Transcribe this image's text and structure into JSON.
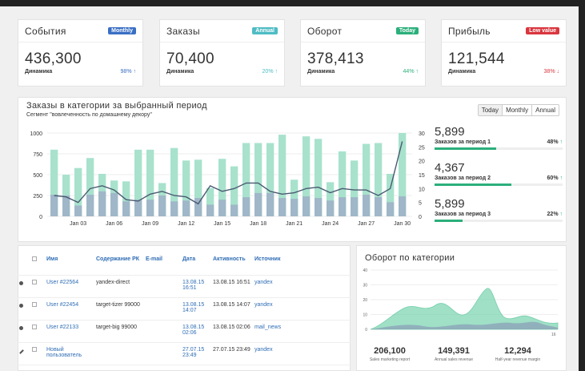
{
  "kpis": [
    {
      "title": "События",
      "badge": "Monthly",
      "badge_color": "#3a6fc4",
      "value": "436,300",
      "dyn": "Динамика",
      "pct": "98%",
      "arrow": "↑",
      "pct_color": "#3a6fc4"
    },
    {
      "title": "Заказы",
      "badge": "Annual",
      "badge_color": "#4fbcc4",
      "value": "70,400",
      "dyn": "Динамика",
      "pct": "20%",
      "arrow": "↑",
      "pct_color": "#4fbcc4"
    },
    {
      "title": "Оборот",
      "badge": "Today",
      "badge_color": "#2baf7b",
      "value": "378,413",
      "dyn": "Динамика",
      "pct": "44%",
      "arrow": "↑",
      "pct_color": "#2baf7b"
    },
    {
      "title": "Прибыль",
      "badge": "Low value",
      "badge_color": "#d9363e",
      "value": "121,544",
      "dyn": "Динамика",
      "pct": "38%",
      "arrow": "↓",
      "pct_color": "#d9363e"
    }
  ],
  "main": {
    "title": "Заказы в категории за выбранный период",
    "subtitle": "Сегмент \"вовлеченность по домашнему декору\"",
    "periods": [
      "Today",
      "Monthly",
      "Annual"
    ]
  },
  "stats": [
    {
      "value": "5,899",
      "label": "Заказов за период 1",
      "pct": "48%",
      "arrow": "↑",
      "fill": 0.48
    },
    {
      "value": "4,367",
      "label": "Заказов за период 2",
      "pct": "60%",
      "arrow": "↑",
      "fill": 0.6
    },
    {
      "value": "5,899",
      "label": "Заказов за период 3",
      "pct": "22%",
      "arrow": "↑",
      "fill": 0.22
    }
  ],
  "chart_data": {
    "type": "bar",
    "left_axis": [
      0,
      250,
      500,
      750,
      1000
    ],
    "right_axis": [
      0,
      5,
      10,
      15,
      20,
      25,
      30
    ],
    "x_ticks": [
      "Jan 03",
      "Jan 06",
      "Jan 09",
      "Jan 12",
      "Jan 15",
      "Jan 18",
      "Jan 21",
      "Jan 24",
      "Jan 27",
      "Jan 30"
    ],
    "bars_light": [
      800,
      500,
      580,
      700,
      510,
      430,
      420,
      800,
      800,
      400,
      820,
      670,
      680,
      340,
      690,
      600,
      880,
      880,
      880,
      980,
      440,
      960,
      930,
      410,
      780,
      670,
      870,
      880,
      510,
      1000
    ],
    "bars_dark": [
      260,
      250,
      130,
      260,
      300,
      280,
      180,
      200,
      200,
      250,
      180,
      190,
      220,
      140,
      200,
      140,
      230,
      280,
      280,
      220,
      210,
      240,
      220,
      190,
      230,
      230,
      260,
      230,
      170,
      240
    ],
    "line_right": [
      7.5,
      7,
      5,
      10,
      11,
      9.5,
      6,
      5.5,
      8,
      9,
      7.5,
      7,
      4.5,
      11,
      9,
      10,
      12,
      12,
      9,
      8,
      8.5,
      10,
      10.5,
      8.5,
      10,
      9.5,
      9.5,
      7.5,
      10,
      27
    ]
  },
  "table": {
    "headers": [
      "Имя",
      "Содержание РК",
      "E-mail",
      "Дата",
      "Активность",
      "Источник"
    ],
    "rows": [
      {
        "icon": "gear",
        "name": "User #22564",
        "content": "yandex-direct",
        "email": "",
        "date": "13.08.15 16:51",
        "act": "13.08.15 16:51",
        "src": "yandex"
      },
      {
        "icon": "gear",
        "name": "User #22454",
        "content": "target-tizer 99000",
        "email": "",
        "date": "13.08.15 14:07",
        "act": "13.08.15 14:07",
        "src": "yandex"
      },
      {
        "icon": "gear",
        "name": "User #22133",
        "content": "target-big 99000",
        "email": "",
        "date": "13.08.15 02:06",
        "act": "13.08.15 02:06",
        "src": "mail_news"
      },
      {
        "icon": "pen",
        "name": "Новый пользователь",
        "content": "",
        "email": "",
        "date": "27.07.15 23:49",
        "act": "27.07.15 23:49",
        "src": "yandex"
      }
    ]
  },
  "revenue": {
    "title": "Оборот по категории",
    "y_ticks": [
      "0",
      "10",
      "20",
      "30",
      "40"
    ],
    "x_end": "16",
    "stats": [
      {
        "value": "206,100",
        "label": "Sales marketing report"
      },
      {
        "value": "149,391",
        "label": "Annual sales revenue"
      },
      {
        "value": "12,294",
        "label": "Half-year revenue margin"
      }
    ]
  }
}
